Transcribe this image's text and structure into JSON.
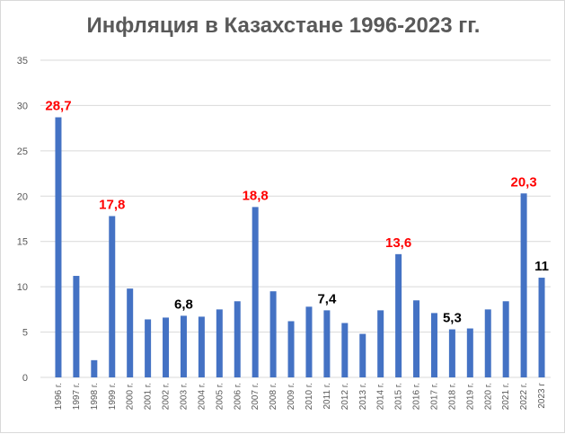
{
  "chart_data": {
    "type": "bar",
    "title": "Инфляция в Казахстане 1996-2023 гг.",
    "xlabel": "",
    "ylabel": "",
    "ylim": [
      0,
      35
    ],
    "yticks": [
      "0",
      "5",
      "10",
      "15",
      "20",
      "25",
      "30",
      "35"
    ],
    "grid": true,
    "legend": "none",
    "colors": {
      "bar": "#4472c4",
      "grid": "#d9d9d9",
      "label_red": "#ff0000",
      "label_black": "#000000"
    },
    "categories": [
      "1996 г.",
      "1997 г.",
      "1998 г.",
      "1999 г.",
      "2000 г.",
      "2001 г.",
      "2002 г.",
      "2003 г.",
      "2004 г.",
      "2005 г.",
      "2006 г.",
      "2007 г.",
      "2008 г.",
      "2009 г.",
      "2010 г.",
      "2011 г.",
      "2012 г.",
      "2013 г.",
      "2014 г.",
      "2015 г.",
      "2016 г.",
      "2017 г.",
      "2018 г.",
      "2019 г.",
      "2020 г.",
      "2021 г.",
      "2022 г.",
      "2023 г"
    ],
    "values": [
      28.7,
      11.2,
      1.9,
      17.8,
      9.8,
      6.4,
      6.6,
      6.8,
      6.7,
      7.5,
      8.4,
      18.8,
      9.5,
      6.2,
      7.8,
      7.4,
      6.0,
      4.8,
      7.4,
      13.6,
      8.5,
      7.1,
      5.3,
      5.4,
      7.5,
      8.4,
      20.3,
      11.0
    ],
    "data_labels": [
      {
        "index": 0,
        "text": "28,7",
        "color": "#ff0000"
      },
      {
        "index": 3,
        "text": "17,8",
        "color": "#ff0000"
      },
      {
        "index": 7,
        "text": "6,8",
        "color": "#000000"
      },
      {
        "index": 11,
        "text": "18,8",
        "color": "#ff0000"
      },
      {
        "index": 15,
        "text": "7,4",
        "color": "#000000"
      },
      {
        "index": 19,
        "text": "13,6",
        "color": "#ff0000"
      },
      {
        "index": 22,
        "text": "5,3",
        "color": "#000000"
      },
      {
        "index": 26,
        "text": "20,3",
        "color": "#ff0000"
      },
      {
        "index": 27,
        "text": "11",
        "color": "#000000"
      }
    ]
  }
}
